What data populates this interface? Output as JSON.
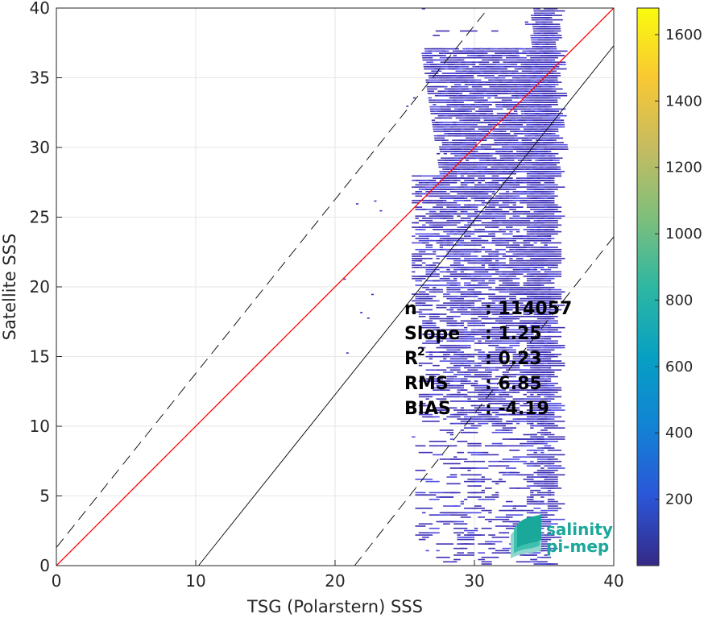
{
  "chart_data": {
    "type": "heatmap",
    "xlabel": "TSG (Polarstern) SSS",
    "ylabel": "Satellite SSS",
    "xlim": [
      0,
      40
    ],
    "ylim": [
      0,
      40
    ],
    "x_ticks": [
      0,
      10,
      20,
      30,
      40
    ],
    "y_ticks": [
      0,
      5,
      10,
      15,
      20,
      25,
      30,
      35,
      40
    ],
    "grid": true,
    "colorbar": {
      "range": [
        0,
        1680
      ],
      "ticks": [
        200,
        400,
        600,
        800,
        1000,
        1200,
        1400,
        1600
      ],
      "colormap": "parula",
      "colors": [
        "#352a87",
        "#2b56d8",
        "#1283d4",
        "#07a0c3",
        "#2eb7a1",
        "#7fbf7b",
        "#c6bc61",
        "#f9c833",
        "#f9fb0e"
      ]
    },
    "lines": [
      {
        "name": "1:1",
        "color": "#ff0000",
        "style": "solid",
        "x": [
          0,
          40
        ],
        "y": [
          0,
          40
        ]
      },
      {
        "name": "regression",
        "color": "#000000",
        "style": "solid",
        "x": [
          10.2,
          40
        ],
        "y": [
          0,
          37.3
        ]
      },
      {
        "name": "upper-bound",
        "color": "#000000",
        "style": "dashed",
        "x": [
          0,
          31
        ],
        "y": [
          1.3,
          40
        ]
      },
      {
        "name": "lower-bound",
        "color": "#000000",
        "style": "dashed",
        "x": [
          21.4,
          40
        ],
        "y": [
          0,
          23.6
        ]
      }
    ],
    "stats": [
      {
        "label": "n",
        "sup": "",
        "sep": ":",
        "value": "114057"
      },
      {
        "label": "Slope",
        "sup": "",
        "sep": ":",
        "value": "1.25"
      },
      {
        "label": "R",
        "sup": "2",
        "sep": ":",
        "value": "0.23"
      },
      {
        "label": "RMS",
        "sup": "",
        "sep": ":",
        "value": "6.85"
      },
      {
        "label": "BIAS",
        "sup": "",
        "sep": ":",
        "value": "-4.19"
      }
    ],
    "density_region": {
      "x_range": [
        25,
        35.5
      ],
      "y_range": [
        0,
        40
      ],
      "dominant_color": "#3d2fb5",
      "highlight_color": "#4f4ae0"
    }
  },
  "logo": {
    "line1": "salinity",
    "line2": "pi-mep",
    "colors": [
      "#1aa89a",
      "#3fbfae",
      "#8fd6cd"
    ]
  }
}
